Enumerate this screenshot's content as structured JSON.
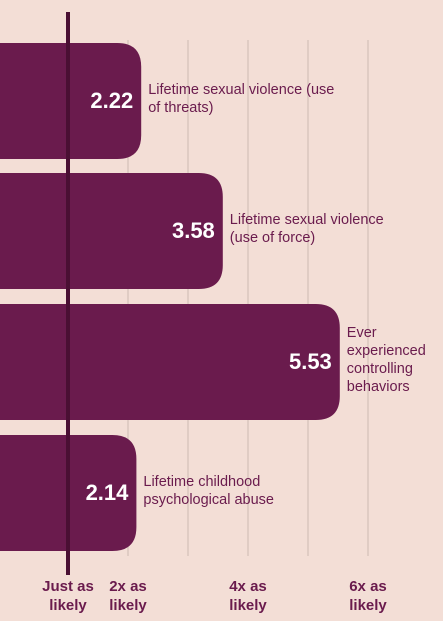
{
  "chart_data": {
    "type": "bar",
    "orientation": "horizontal",
    "categories": [
      "Lifetime sexual violence (use of threats)",
      "Lifetime sexual violence (use of force)",
      "Ever experienced controlling behaviors",
      "Lifetime childhood psychological abuse"
    ],
    "values": [
      2.22,
      3.58,
      5.53,
      2.14
    ],
    "color": "#6a1b4d",
    "xlim": [
      0,
      7.25
    ],
    "xticks": [
      {
        "value": 1,
        "label": "Just as likely"
      },
      {
        "value": 2,
        "label": "2x as likely"
      },
      {
        "value": 3,
        "label": null
      },
      {
        "value": 4,
        "label": "4x as likely"
      },
      {
        "value": 5,
        "label": null
      },
      {
        "value": 6,
        "label": "6x as likely"
      }
    ],
    "grid": true
  }
}
